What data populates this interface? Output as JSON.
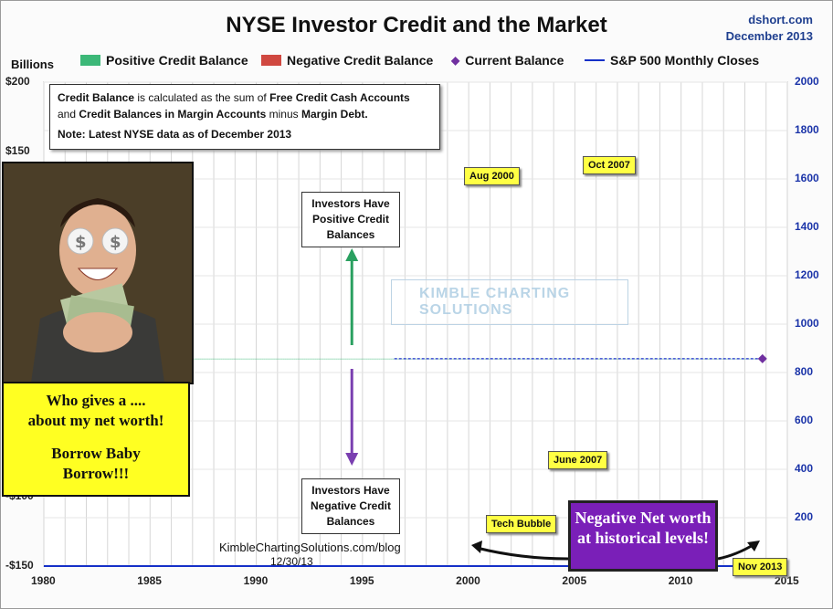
{
  "title": "NYSE Investor Credit and the Market",
  "source": {
    "site": "dshort.com",
    "date": "December 2013"
  },
  "units_label": "Billions",
  "legend": [
    {
      "label": "Positive Credit Balance",
      "kind": "bar",
      "color": "#3cb878"
    },
    {
      "label": "Negative Credit Balance",
      "kind": "bar",
      "color": "#d04840"
    },
    {
      "label": "Current Balance",
      "kind": "diamond",
      "color": "#7030a0"
    },
    {
      "label": "S&P 500 Monthly Closes",
      "kind": "line",
      "color": "#1530c8"
    }
  ],
  "note": {
    "line1_a": "Credit Balance",
    "line1_b": " is calculated as the sum of ",
    "line1_c": "Free Credit Cash Accounts",
    "line2_a": "and ",
    "line2_b": "Credit Balances in Margin Accounts",
    "line2_c": " minus ",
    "line2_d": "Margin Debt.",
    "line3": "Note: Latest NYSE data as of December 2013"
  },
  "annotations": {
    "positive": "Investors Have Positive Credit Balances",
    "negative": "Investors Have Negative Credit Balances",
    "aug2000": "Aug 2000",
    "oct2007": "Oct 2007",
    "june2007": "June 2007",
    "tech_bubble": "Tech Bubble",
    "nov2013": "Nov 2013",
    "net_worth": "Negative Net worth at historical levels!",
    "sayings_1": "Who gives a ....",
    "sayings_2": "about my net worth!",
    "sayings_3": "Borrow Baby",
    "sayings_4": "Borrow!!!",
    "footer_site": "KimbleChartingSolutions.com/blog",
    "footer_date": "12/30/13",
    "watermark": "KIMBLE CHARTING SOLUTIONS"
  },
  "colors": {
    "positive": "#3cb878",
    "negative": "#d04840",
    "sp500": "#1530c8",
    "current": "#7030a0",
    "zero_line": "#3b4ed0"
  },
  "chart_data": {
    "type": "bar",
    "x_range": [
      1980,
      2015
    ],
    "x_ticks": [
      1980,
      1985,
      1990,
      1995,
      2000,
      2005,
      2010,
      2015
    ],
    "left_axis": {
      "label": "Billions",
      "range": [
        -150,
        200
      ],
      "tick_labels": [
        "$200",
        "$150",
        "-$100",
        "-$150"
      ],
      "tick_values": [
        200,
        150,
        -100,
        -150
      ]
    },
    "right_axis": {
      "range": [
        0,
        2000
      ],
      "ticks": [
        200,
        400,
        600,
        800,
        1000,
        1200,
        1400,
        1600,
        1800,
        2000
      ]
    },
    "credit_balance_series": {
      "name": "Credit Balance",
      "points": [
        [
          1980.0,
          0
        ],
        [
          1981.0,
          0
        ],
        [
          1982.0,
          0
        ],
        [
          1983.0,
          0
        ],
        [
          1984.0,
          0
        ],
        [
          1985.0,
          0
        ],
        [
          1986.0,
          0
        ],
        [
          1987.0,
          0
        ],
        [
          1988.0,
          0
        ],
        [
          1989.0,
          0
        ],
        [
          1990.0,
          0
        ],
        [
          1991.0,
          0
        ],
        [
          1992.0,
          0
        ],
        [
          1993.0,
          0
        ],
        [
          1994.0,
          0
        ],
        [
          1995.0,
          0
        ],
        [
          1996.0,
          0
        ],
        [
          1997.0,
          0
        ],
        [
          1997.5,
          0
        ],
        [
          1998.0,
          0
        ],
        [
          1998.5,
          0
        ],
        [
          1999.0,
          0
        ],
        [
          1999.5,
          0
        ],
        [
          2000.0,
          0
        ],
        [
          2000.3,
          0
        ],
        [
          2000.7,
          0
        ],
        [
          2001.0,
          0
        ],
        [
          2001.5,
          0
        ],
        [
          2002.0,
          0
        ],
        [
          2002.5,
          0
        ],
        [
          2003.0,
          0
        ],
        [
          2003.5,
          0
        ],
        [
          2004.0,
          0
        ],
        [
          2004.5,
          0
        ],
        [
          2005.0,
          0
        ],
        [
          2005.5,
          0
        ],
        [
          2006.0,
          0
        ],
        [
          2006.5,
          0
        ],
        [
          2007.0,
          0
        ],
        [
          2007.5,
          0
        ],
        [
          2007.8,
          0
        ],
        [
          2008.0,
          0
        ],
        [
          2008.3,
          0
        ],
        [
          2008.5,
          0
        ],
        [
          2008.7,
          0
        ],
        [
          2009.0,
          0
        ],
        [
          2009.5,
          0
        ],
        [
          2010.0,
          0
        ],
        [
          2010.5,
          0
        ],
        [
          2011.0,
          0
        ],
        [
          2011.5,
          0
        ],
        [
          2012.0,
          0
        ],
        [
          2012.5,
          0
        ],
        [
          2013.0,
          0
        ],
        [
          2013.5,
          0
        ],
        [
          2013.83,
          0
        ]
      ]
    },
    "current_balance": {
      "x": 2013.83,
      "label": "Nov 2013"
    },
    "sp500_series": {
      "name": "S&P 500 Monthly Closes",
      "points": [
        [
          1980.0,
          0
        ],
        [
          1981.0,
          0
        ],
        [
          1982.0,
          0
        ],
        [
          1983.0,
          0
        ],
        [
          1984.0,
          0
        ],
        [
          1985.0,
          0
        ],
        [
          1986.0,
          0
        ],
        [
          1987.0,
          0
        ],
        [
          1988.0,
          0
        ],
        [
          1989.0,
          0
        ],
        [
          1990.0,
          0
        ],
        [
          1991.0,
          0
        ],
        [
          1992.0,
          0
        ],
        [
          1993.0,
          0
        ],
        [
          1994.0,
          0
        ],
        [
          1995.0,
          0
        ],
        [
          1996.0,
          0
        ],
        [
          1997.0,
          0
        ],
        [
          1998.0,
          0
        ],
        [
          1999.0,
          0
        ],
        [
          2000.0,
          0
        ],
        [
          2000.66,
          0
        ],
        [
          2001.0,
          0
        ],
        [
          2001.5,
          0
        ],
        [
          2002.0,
          0
        ],
        [
          2002.75,
          0
        ],
        [
          2003.0,
          0
        ],
        [
          2004.0,
          0
        ],
        [
          2005.0,
          0
        ],
        [
          2006.0,
          0
        ],
        [
          2007.0,
          0
        ],
        [
          2007.4,
          0
        ],
        [
          2007.8,
          0
        ],
        [
          2008.0,
          0
        ],
        [
          2008.5,
          0
        ],
        [
          2008.8,
          0
        ],
        [
          2009.2,
          0
        ],
        [
          2009.5,
          0
        ],
        [
          2010.0,
          0
        ],
        [
          2010.5,
          0
        ],
        [
          2011.0,
          0
        ],
        [
          2011.3,
          0
        ],
        [
          2011.75,
          0
        ],
        [
          2012.0,
          0
        ],
        [
          2012.5,
          0
        ],
        [
          2013.0,
          0
        ],
        [
          2013.5,
          0
        ],
        [
          2013.92,
          0
        ]
      ]
    }
  }
}
